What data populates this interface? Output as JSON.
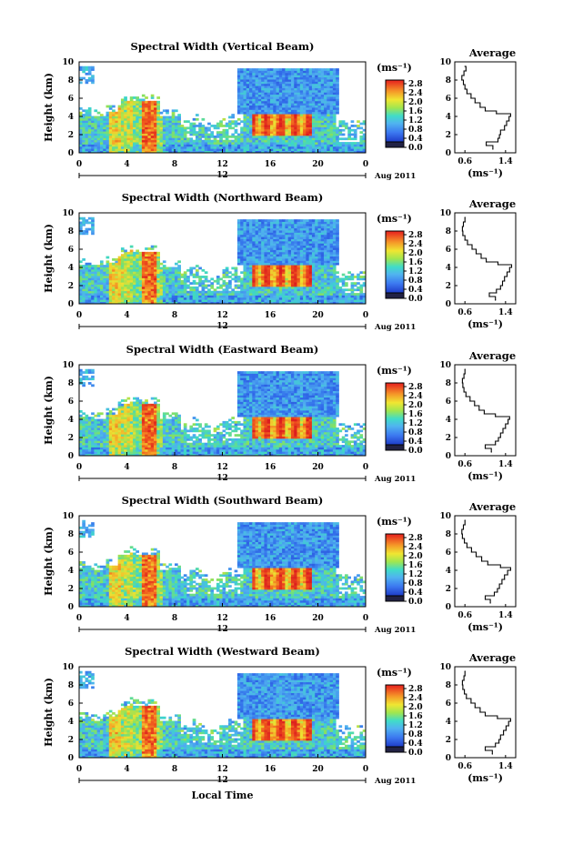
{
  "figure": {
    "x_axis_label": "Local Time",
    "date_label": "Aug 2011",
    "profile_title": "Average",
    "colorbar_unit": "(ms⁻¹)",
    "colorbar_ticks": [
      "2.8",
      "2.4",
      "2.0",
      "1.6",
      "1.2",
      "0.8",
      "0.4",
      "0.0"
    ],
    "colorbar_ticks_variant": [
      "2.8",
      "2.4",
      "2.0",
      "1.6",
      "1.2",
      "0.8",
      "0.4",
      "0.0"
    ],
    "time_ticks": [
      "0",
      "4",
      "8",
      "12",
      "16",
      "20",
      "0"
    ],
    "midnight_label": "12",
    "height_ticks": [
      "0",
      "2",
      "4",
      "6",
      "8",
      "10"
    ],
    "profile_x_ticks": [
      "0.6",
      "1.4"
    ],
    "profile_x_unit": "(ms⁻¹)",
    "y_axis_label": "Height (km)"
  },
  "chart_data": [
    {
      "type": "heatmap",
      "title": "Spectral Width (Vertical Beam)",
      "xlabel": "",
      "ylabel": "Height (km)",
      "xlim": [
        0,
        24
      ],
      "ylim": [
        0,
        10
      ],
      "colorbar": {
        "label": "(ms⁻¹)",
        "range": [
          0.0,
          2.8
        ]
      },
      "profile": {
        "title": "Average",
        "xlabel": "(ms⁻¹)",
        "xlim": [
          0.4,
          1.6
        ],
        "ylim": [
          0,
          10
        ],
        "height": [
          0.4,
          0.8,
          1.2,
          1.6,
          2.0,
          2.5,
          3.0,
          3.5,
          4.0,
          4.3,
          4.6,
          5.0,
          5.5,
          6.0,
          6.5,
          7.0,
          7.5,
          8.0,
          8.5,
          9.0,
          9.5
        ],
        "value": [
          1.15,
          1.02,
          1.25,
          1.28,
          1.3,
          1.38,
          1.42,
          1.47,
          1.5,
          1.22,
          1.0,
          0.9,
          0.8,
          0.72,
          0.64,
          0.6,
          0.57,
          0.54,
          0.58,
          0.62,
          0.6
        ]
      }
    },
    {
      "type": "heatmap",
      "title": "Spectral Width (Northward Beam)",
      "xlabel": "",
      "ylabel": "Height (km)",
      "xlim": [
        0,
        24
      ],
      "ylim": [
        0,
        10
      ],
      "colorbar": {
        "label": "(ms⁻¹)",
        "range": [
          0.0,
          2.8
        ]
      },
      "profile": {
        "title": "Average",
        "xlabel": "(ms⁻¹)",
        "xlim": [
          0.4,
          1.6
        ],
        "ylim": [
          0,
          10
        ],
        "height": [
          0.4,
          0.8,
          1.2,
          1.6,
          2.0,
          2.5,
          3.0,
          3.5,
          4.0,
          4.3,
          4.6,
          5.0,
          5.5,
          6.0,
          6.5,
          7.0,
          7.5,
          8.0,
          8.5,
          9.0,
          9.5
        ],
        "value": [
          1.2,
          1.08,
          1.22,
          1.3,
          1.34,
          1.38,
          1.43,
          1.48,
          1.52,
          1.25,
          1.02,
          0.92,
          0.82,
          0.74,
          0.65,
          0.6,
          0.56,
          0.55,
          0.57,
          0.6,
          0.6
        ]
      }
    },
    {
      "type": "heatmap",
      "title": "Spectral Width (Eastward Beam)",
      "xlabel": "",
      "ylabel": "Height (km)",
      "xlim": [
        0,
        24
      ],
      "ylim": [
        0,
        10
      ],
      "colorbar": {
        "label": "(ms⁻¹)",
        "range": [
          0.0,
          2.8
        ]
      },
      "profile": {
        "title": "Average",
        "xlabel": "(ms⁻¹)",
        "xlim": [
          0.4,
          1.6
        ],
        "ylim": [
          0,
          10
        ],
        "height": [
          0.4,
          0.8,
          1.2,
          1.6,
          2.0,
          2.5,
          3.0,
          3.5,
          4.0,
          4.3,
          4.6,
          5.0,
          5.5,
          6.0,
          6.5,
          7.0,
          7.5,
          8.0,
          8.5,
          9.0,
          9.5
        ],
        "value": [
          1.12,
          1.0,
          1.2,
          1.26,
          1.3,
          1.35,
          1.4,
          1.45,
          1.48,
          1.2,
          0.98,
          0.88,
          0.79,
          0.7,
          0.62,
          0.58,
          0.56,
          0.55,
          0.58,
          0.6,
          0.6
        ]
      }
    },
    {
      "type": "heatmap",
      "title": "Spectral Width (Southward Beam)",
      "xlabel": "",
      "ylabel": "Height (km)",
      "xlim": [
        0,
        24
      ],
      "ylim": [
        0,
        10
      ],
      "colorbar": {
        "label": "(ms⁻¹)",
        "range": [
          0.0,
          2.8
        ]
      },
      "profile": {
        "title": "Average",
        "xlabel": "(ms⁻¹)",
        "xlim": [
          0.4,
          1.6
        ],
        "ylim": [
          0,
          10
        ],
        "height": [
          0.4,
          0.8,
          1.2,
          1.6,
          2.0,
          2.5,
          3.0,
          3.5,
          4.0,
          4.3,
          4.6,
          5.0,
          5.5,
          6.0,
          6.5,
          7.0,
          7.5,
          8.0,
          8.5,
          9.0,
          9.5
        ],
        "value": [
          1.1,
          1.0,
          1.18,
          1.24,
          1.28,
          1.33,
          1.38,
          1.44,
          1.5,
          1.3,
          1.05,
          0.93,
          0.82,
          0.73,
          0.64,
          0.59,
          0.55,
          0.54,
          0.57,
          0.6,
          0.6
        ]
      }
    },
    {
      "type": "heatmap",
      "title": "Spectral Width (Westward Beam)",
      "xlabel": "Local Time",
      "ylabel": "Height (km)",
      "xlim": [
        0,
        24
      ],
      "ylim": [
        0,
        10
      ],
      "colorbar": {
        "label": "(ms⁻¹)",
        "range": [
          0.0,
          2.8
        ]
      },
      "profile": {
        "title": "Average",
        "xlabel": "(ms⁻¹)",
        "xlim": [
          0.4,
          1.6
        ],
        "ylim": [
          0,
          10
        ],
        "height": [
          0.4,
          0.8,
          1.2,
          1.6,
          2.0,
          2.5,
          3.0,
          3.5,
          4.0,
          4.3,
          4.6,
          5.0,
          5.5,
          6.0,
          6.5,
          7.0,
          7.5,
          8.0,
          8.5,
          9.0,
          9.5
        ],
        "value": [
          1.14,
          1.0,
          1.2,
          1.27,
          1.3,
          1.36,
          1.41,
          1.46,
          1.5,
          1.24,
          1.0,
          0.9,
          0.8,
          0.72,
          0.63,
          0.59,
          0.56,
          0.55,
          0.58,
          0.6,
          0.6
        ]
      }
    }
  ]
}
